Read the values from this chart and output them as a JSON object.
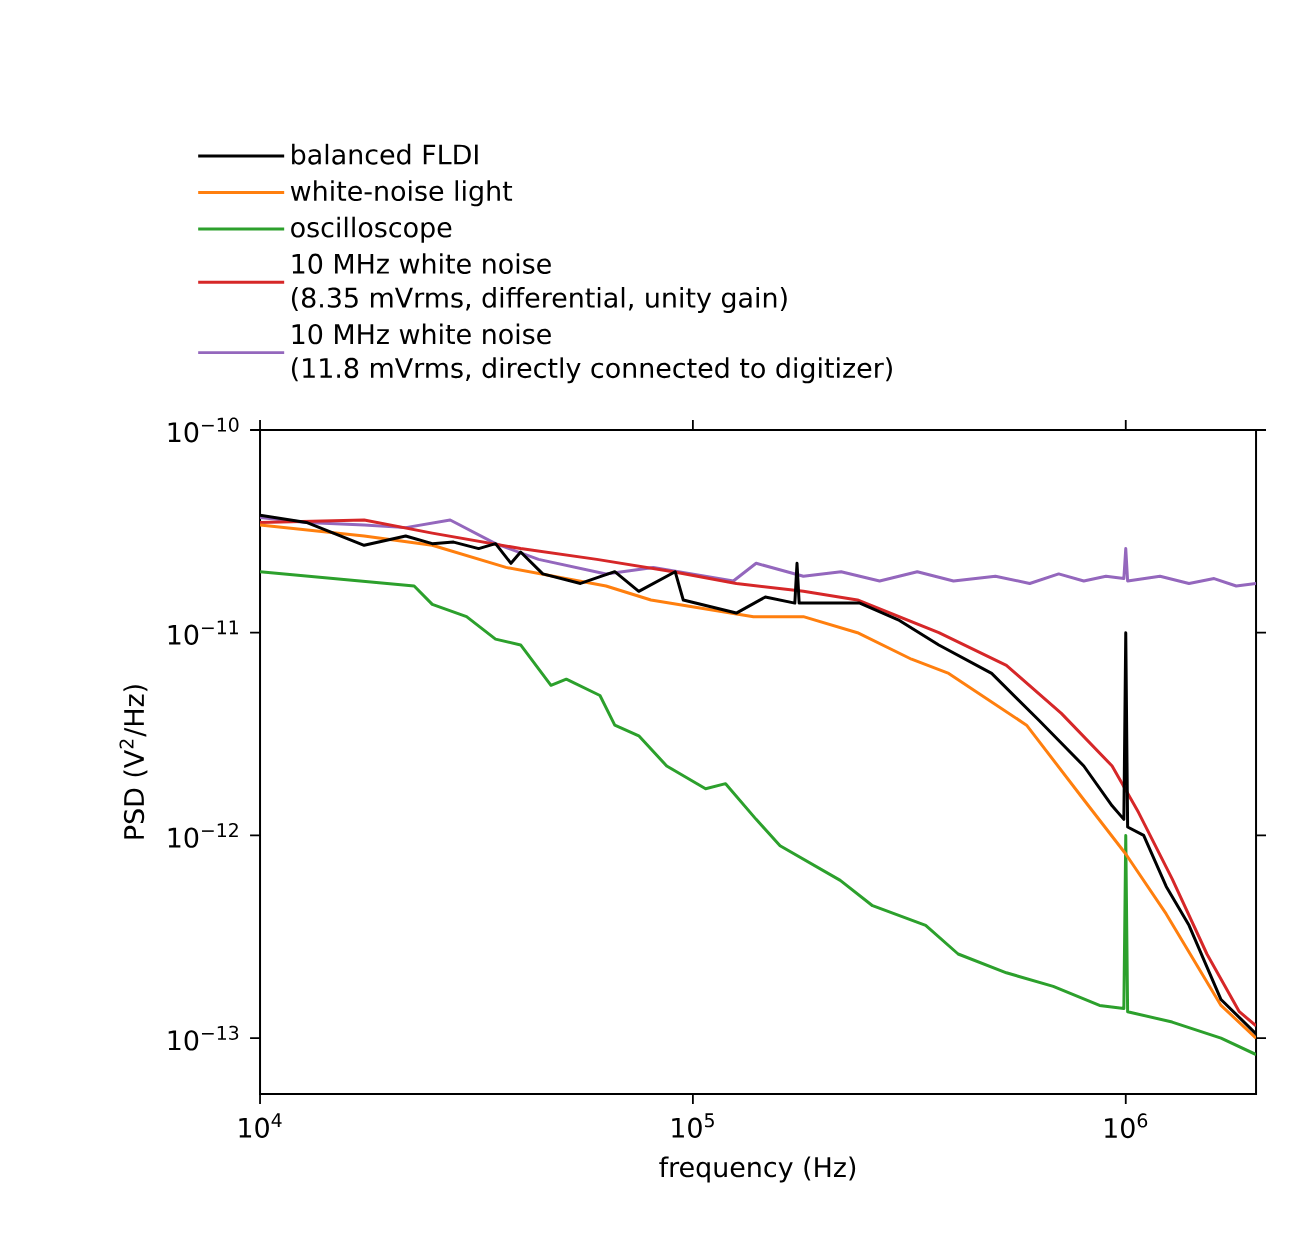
{
  "chart_data": {
    "type": "line",
    "xlabel": "frequency (Hz)",
    "ylabel": "PSD (V$^{2}$/Hz)",
    "log": "xy",
    "legend": "top",
    "marker": "none",
    "line_style": "solid",
    "xlim": [
      10000,
      2000000
    ],
    "ylim": [
      5.3e-14,
      1e-10
    ],
    "xticks": [
      {
        "value": 10000,
        "label": "10$^{4}$"
      },
      {
        "value": 100000,
        "label": "10$^{5}$"
      },
      {
        "value": 1000000,
        "label": "10$^{6}$"
      }
    ],
    "yticks": [
      {
        "value": 1e-13,
        "label": "10$^{−13}$"
      },
      {
        "value": 1e-12,
        "label": "10$^{−12}$"
      },
      {
        "value": 1e-11,
        "label": "10$^{−11}$"
      },
      {
        "value": 1e-10,
        "label": "10$^{−10}$"
      }
    ],
    "series": [
      {
        "name": "balanced FLDI",
        "color": "#000000",
        "x": [
          10000,
          12800,
          17400,
          21700,
          25000,
          28000,
          32000,
          35000,
          38000,
          40000,
          45000,
          55000,
          66000,
          75000,
          91000,
          95000,
          126000,
          147000,
          172000,
          174000,
          176000,
          243000,
          300000,
          370000,
          490000,
          630000,
          800000,
          930000,
          990000,
          1000000,
          1010000,
          1100000,
          1240000,
          1400000,
          1660000,
          2000000
        ],
        "values": [
          3.8e-11,
          3.5e-11,
          2.7e-11,
          3e-11,
          2.75e-11,
          2.8e-11,
          2.6e-11,
          2.75e-11,
          2.2e-11,
          2.5e-11,
          1.95e-11,
          1.75e-11,
          2e-11,
          1.6e-11,
          2e-11,
          1.45e-11,
          1.25e-11,
          1.5e-11,
          1.4e-11,
          2.2e-11,
          1.4e-11,
          1.4e-11,
          1.15e-11,
          8.7e-12,
          6.3e-12,
          3.7e-12,
          2.2e-12,
          1.4e-12,
          1.2e-12,
          1e-11,
          1.1e-12,
          1e-12,
          5.6e-13,
          3.6e-13,
          1.55e-13,
          1.05e-13
        ]
      },
      {
        "name": "white-noise light",
        "color": "#ff7f0e",
        "x": [
          10000,
          17400,
          25000,
          37000,
          63000,
          80000,
          138000,
          180000,
          240000,
          320000,
          390000,
          590000,
          800000,
          1000000,
          1240000,
          1660000,
          2000000
        ],
        "values": [
          3.4e-11,
          3e-11,
          2.7e-11,
          2.1e-11,
          1.7e-11,
          1.45e-11,
          1.2e-11,
          1.2e-11,
          1e-11,
          7.4e-12,
          6.3e-12,
          3.5e-12,
          1.5e-12,
          8.1e-13,
          4.1e-13,
          1.45e-13,
          1e-13
        ]
      },
      {
        "name": "oscilloscope",
        "color": "#2ca02c",
        "x": [
          10000,
          22700,
          25000,
          30000,
          35000,
          40000,
          47000,
          51000,
          61000,
          66000,
          75000,
          87000,
          107000,
          119000,
          140000,
          159000,
          219000,
          260000,
          345000,
          410000,
          530000,
          680000,
          870000,
          990000,
          1000000,
          1010000,
          1280000,
          1660000,
          2000000
        ],
        "values": [
          2e-11,
          1.7e-11,
          1.38e-11,
          1.2e-11,
          9.3e-12,
          8.7e-12,
          5.5e-12,
          5.9e-12,
          4.9e-12,
          3.5e-12,
          3.1e-12,
          2.2e-12,
          1.7e-12,
          1.8e-12,
          1.2e-12,
          8.9e-13,
          6e-13,
          4.5e-13,
          3.6e-13,
          2.6e-13,
          2.1e-13,
          1.8e-13,
          1.45e-13,
          1.4e-13,
          1e-12,
          1.35e-13,
          1.2e-13,
          1e-13,
          8.3e-14
        ]
      },
      {
        "name": "10 MHz white noise\n(8.35 mVrms, differential, unity gain)",
        "color": "#d62728",
        "x": [
          10000,
          17400,
          25000,
          40000,
          60000,
          90000,
          126000,
          180000,
          240000,
          370000,
          530000,
          710000,
          930000,
          1070000,
          1280000,
          1540000,
          1830000,
          2000000
        ],
        "values": [
          3.5e-11,
          3.6e-11,
          3.1e-11,
          2.6e-11,
          2.3e-11,
          2e-11,
          1.75e-11,
          1.6e-11,
          1.45e-11,
          1e-11,
          6.9e-12,
          4e-12,
          2.2e-12,
          1.3e-12,
          6.1e-13,
          2.6e-13,
          1.35e-13,
          1.15e-13
        ]
      },
      {
        "name": "10 MHz white noise\n(11.8 mVrms, directly connected to digitizer)",
        "color": "#9467bd",
        "x": [
          10000,
          12800,
          17400,
          21700,
          27500,
          35000,
          44000,
          63000,
          81000,
          124000,
          140000,
          180000,
          220000,
          270000,
          330000,
          400000,
          500000,
          600000,
          700000,
          800000,
          900000,
          990000,
          1000000,
          1010000,
          1200000,
          1400000,
          1600000,
          1800000,
          2000000
        ],
        "values": [
          3.7e-11,
          3.5e-11,
          3.4e-11,
          3.3e-11,
          3.6e-11,
          2.75e-11,
          2.3e-11,
          1.95e-11,
          2.1e-11,
          1.8e-11,
          2.2e-11,
          1.9e-11,
          2e-11,
          1.8e-11,
          2e-11,
          1.8e-11,
          1.9e-11,
          1.75e-11,
          1.95e-11,
          1.8e-11,
          1.9e-11,
          1.85e-11,
          2.6e-11,
          1.8e-11,
          1.9e-11,
          1.75e-11,
          1.85e-11,
          1.7e-11,
          1.75e-11
        ]
      }
    ]
  }
}
